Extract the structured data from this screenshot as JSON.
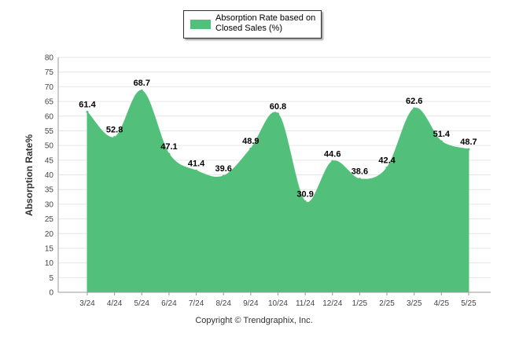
{
  "chart_data": {
    "type": "area",
    "categories": [
      "3/24",
      "4/24",
      "5/24",
      "6/24",
      "7/24",
      "8/24",
      "9/24",
      "10/24",
      "11/24",
      "12/24",
      "1/25",
      "2/25",
      "3/25",
      "4/25",
      "5/25"
    ],
    "series": [
      {
        "name": "Absorption Rate based on Closed Sales (%)",
        "values": [
          61.4,
          52.8,
          68.7,
          47.1,
          41.4,
          39.6,
          48.9,
          60.8,
          30.9,
          44.6,
          38.6,
          42.4,
          62.6,
          51.4,
          48.7
        ]
      }
    ],
    "data_labels": [
      "61.4",
      "52.8",
      "68.7",
      "47.1",
      "41.4",
      "39.6",
      "48.9",
      "60.8",
      "30.9",
      "44.6",
      "38.6",
      "42.4",
      "62.6",
      "51.4",
      "48.7"
    ],
    "ylabel": "Absorption Rate%",
    "xlabel": "",
    "ylim": [
      0,
      80
    ],
    "yticks": [
      "0",
      "5",
      "10",
      "15",
      "20",
      "25",
      "30",
      "35",
      "40",
      "45",
      "50",
      "55",
      "60",
      "65",
      "70",
      "75",
      "80"
    ],
    "grid": true,
    "legend_position": "top-center",
    "colors": {
      "area": "#52c07a",
      "grid": "#e6e6e6",
      "axis": "#999999"
    }
  },
  "legend": {
    "label": "Absorption Rate based on Closed Sales (%)"
  },
  "footer": {
    "copyright": "Copyright © Trendgraphix, Inc."
  }
}
